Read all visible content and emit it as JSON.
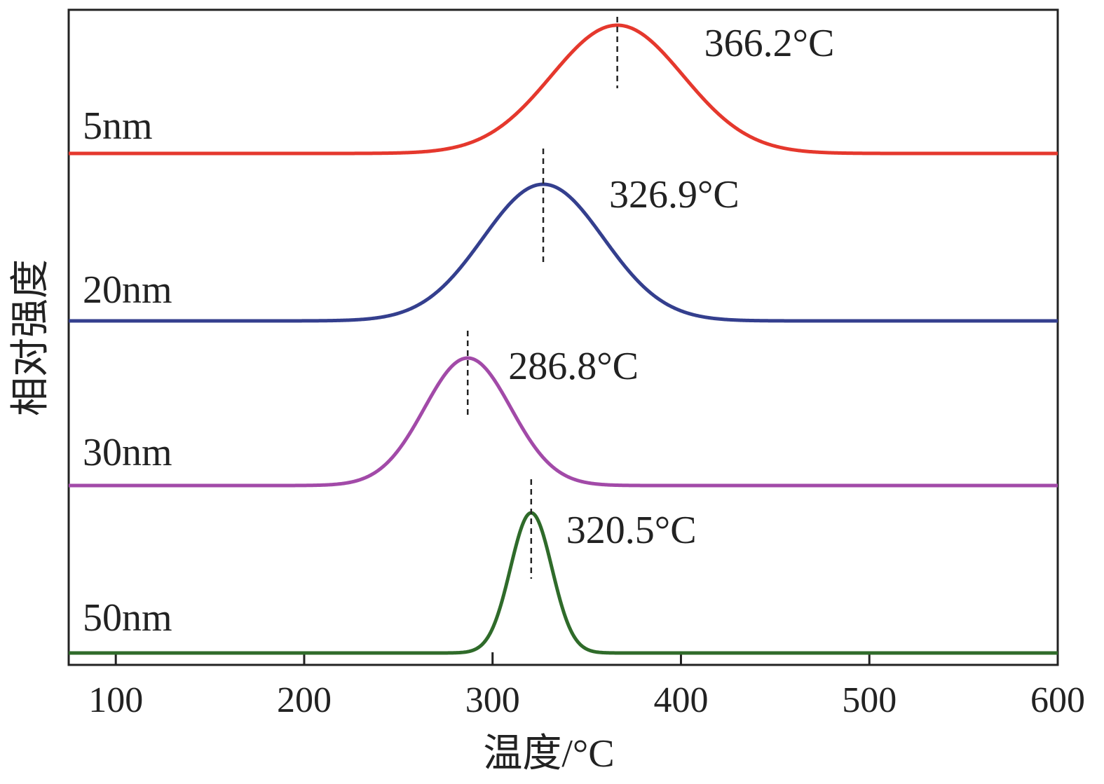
{
  "chart_data": {
    "type": "line",
    "title": "",
    "xlabel": "温度/°C",
    "ylabel": "相对强度",
    "xlim": [
      75,
      600
    ],
    "x_ticks": [
      100,
      200,
      300,
      400,
      500,
      600
    ],
    "x_tick_labels": [
      "100",
      "200",
      "300",
      "400",
      "500",
      "600"
    ],
    "y_ticks": [],
    "grid": false,
    "legend": "none",
    "series": [
      {
        "name": "5nm",
        "label": "5nm",
        "color": "#e5382d",
        "baseline": 0,
        "peak_x": 366.2,
        "peak_label": "366.2°C",
        "peak_height": 1.0,
        "sigma": 35
      },
      {
        "name": "20nm",
        "label": "20nm",
        "color": "#343f8e",
        "baseline": 0,
        "peak_x": 326.9,
        "peak_label": "326.9°C",
        "peak_height": 1.0,
        "sigma": 32
      },
      {
        "name": "30nm",
        "label": "30nm",
        "color": "#a24aa8",
        "baseline": 0,
        "peak_x": 286.8,
        "peak_label": "286.8°C",
        "peak_height": 1.0,
        "sigma": 23
      },
      {
        "name": "50nm",
        "label": "50nm",
        "color": "#2f6b2a",
        "baseline": 0,
        "peak_x": 320.5,
        "peak_label": "320.5°C",
        "peak_height": 1.0,
        "sigma": 11
      }
    ]
  }
}
